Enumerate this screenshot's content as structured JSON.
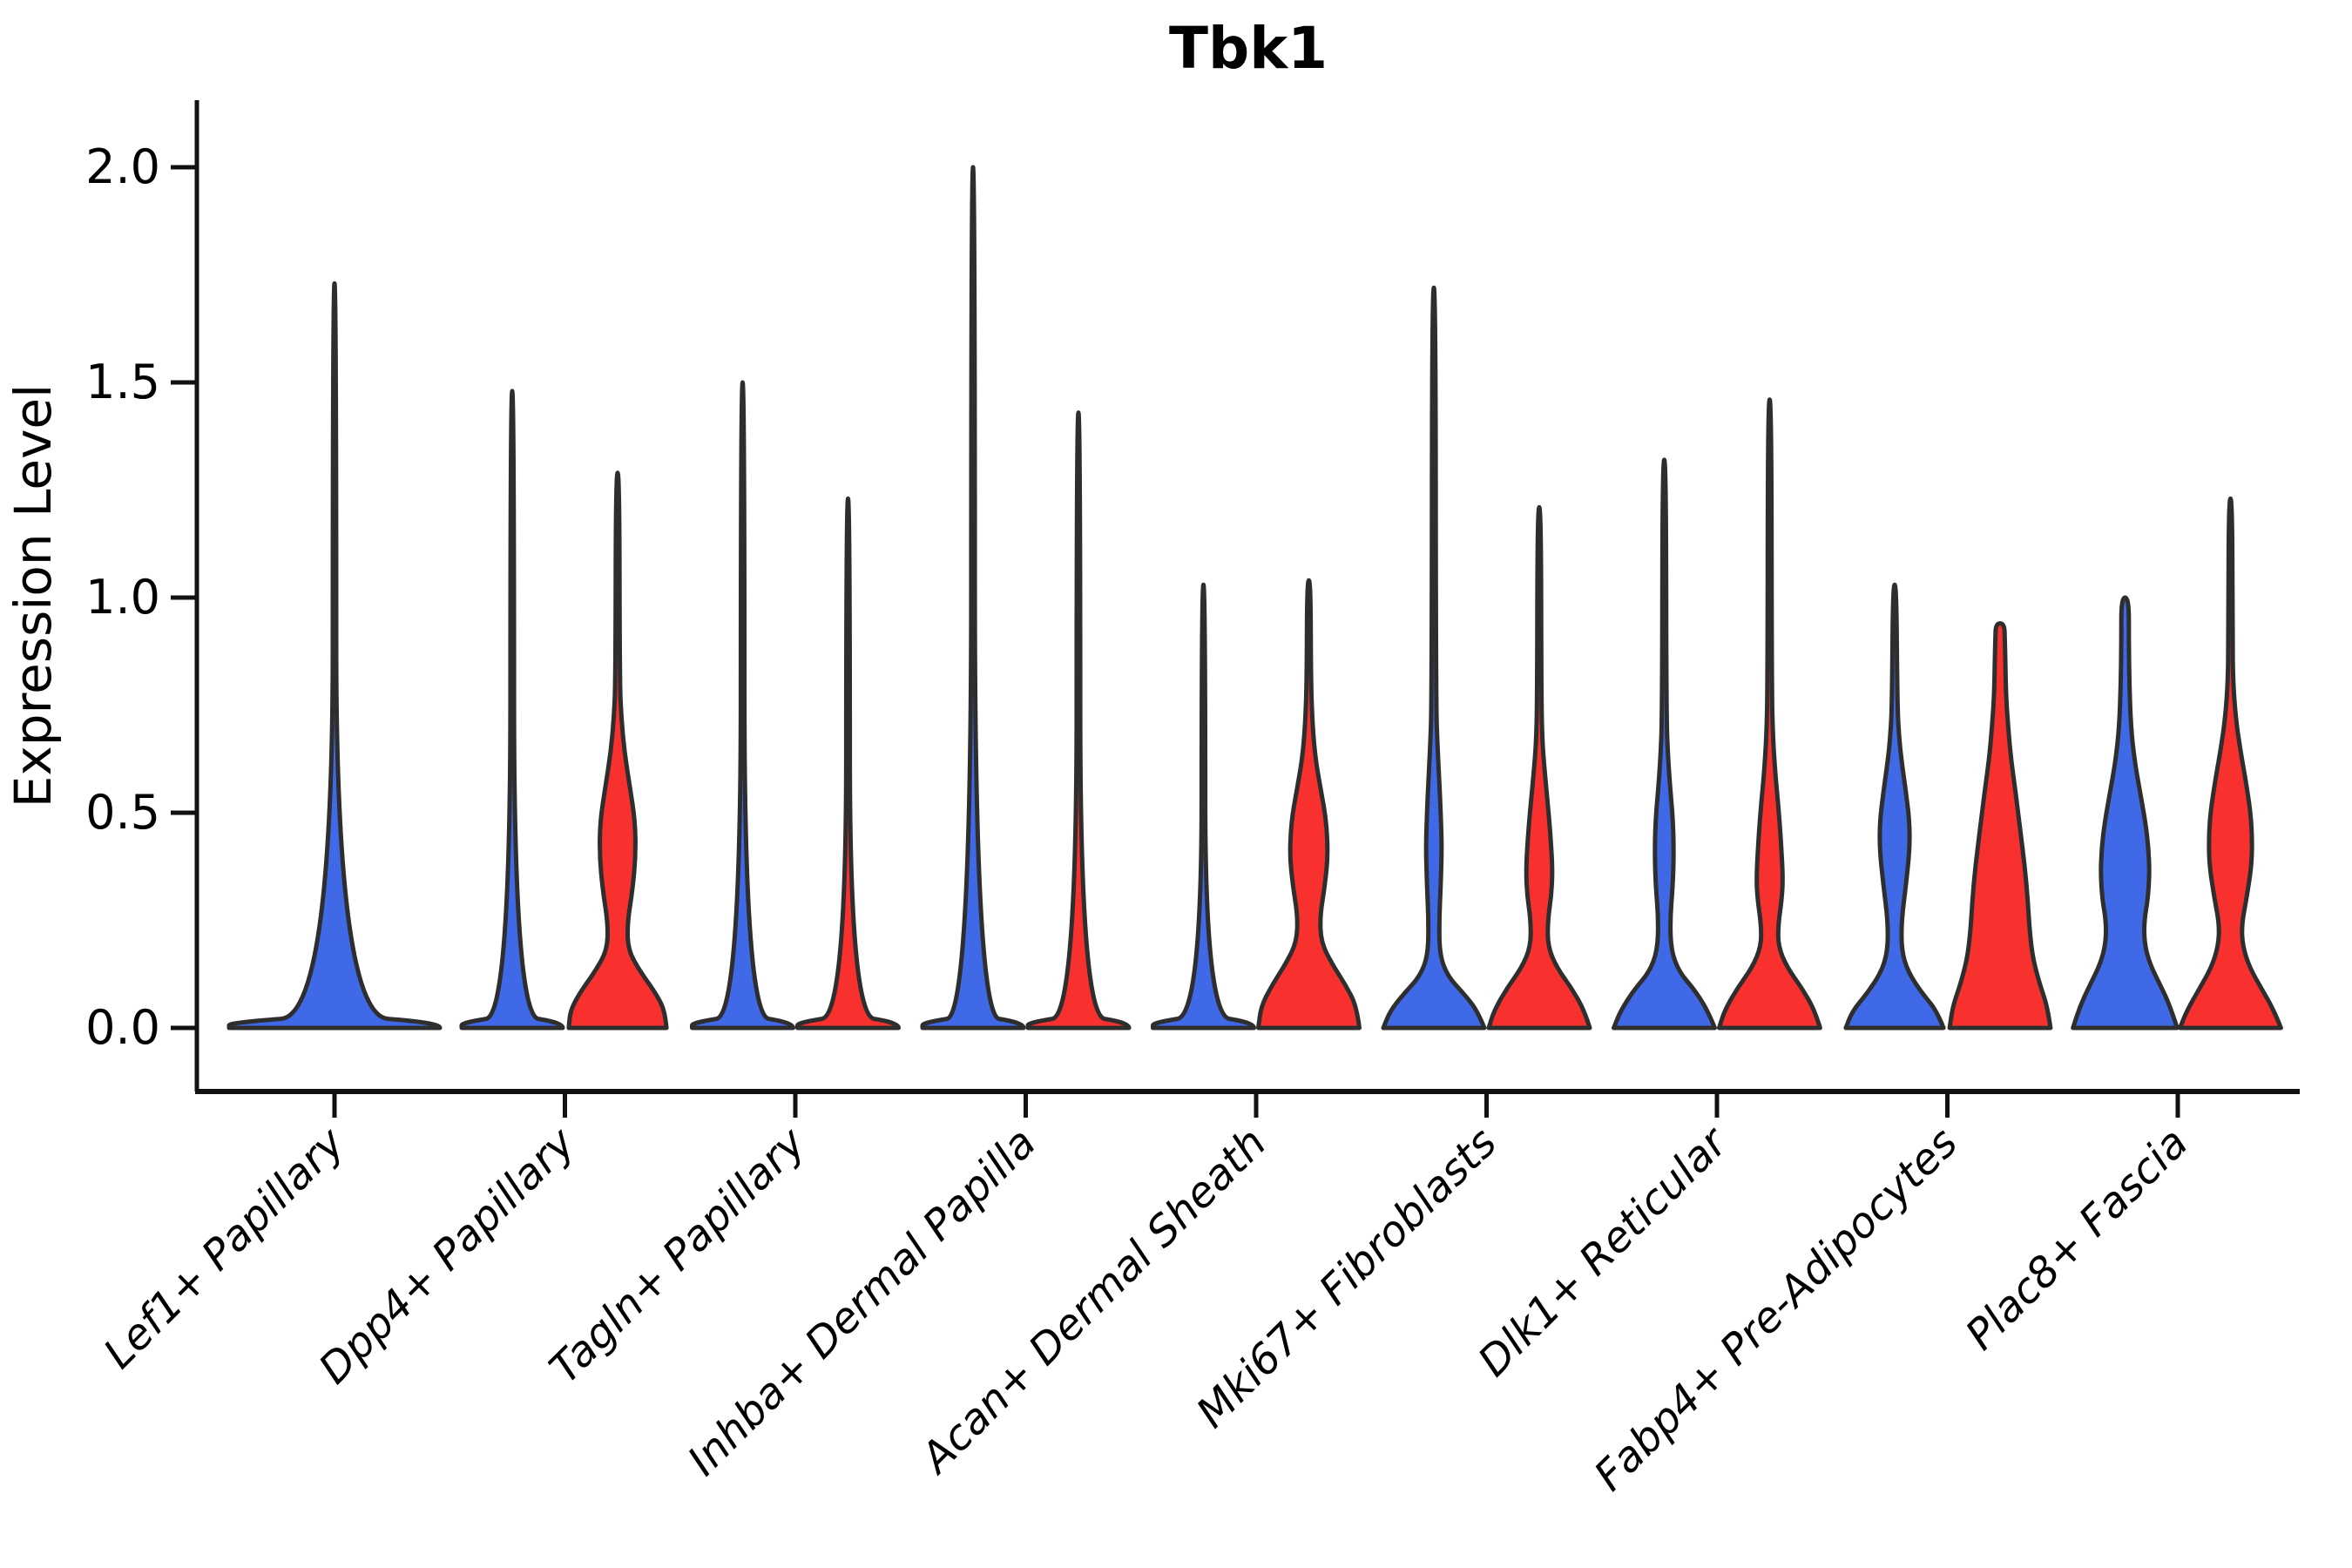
{
  "chart_data": {
    "type": "violin",
    "title": "Tbk1",
    "ylabel": "Expression Level",
    "xlabel": "",
    "ylim": [
      0.0,
      2.0
    ],
    "yticks": [
      "2.0",
      "1.5",
      "1.0",
      "0.5",
      "0.0"
    ],
    "ytick_values": [
      2.0,
      1.5,
      1.0,
      0.5,
      0.0
    ],
    "grid": false,
    "legend": "none",
    "colors": {
      "condition_blue": "#4069E8",
      "condition_red": "#F8312F",
      "outline": "#2E2E2E",
      "axis": "#111111",
      "text": "#000000"
    },
    "categories": [
      "Lef1+ Papillary",
      "Dpp4+ Papillary",
      "Tagln+ Papillary",
      "Inhba+ Dermal Papilla",
      "Acan+ Dermal Sheath",
      "Mki67+ Fibroblasts",
      "Dlk1+ Reticular",
      "Fabp4+ Pre-Adipocytes",
      "Plac8+ Fascia"
    ],
    "violins": [
      {
        "category_index": 0,
        "category": "Lef1+ Papillary",
        "group": "single",
        "color_key": "condition_blue",
        "shape": "flat-with-spike",
        "max_expression": 1.73,
        "profile": [
          [
            0,
            1.0
          ],
          [
            0.012,
            1.0
          ],
          [
            0.03,
            0.017
          ],
          [
            1.73,
            0.016
          ]
        ]
      },
      {
        "category_index": 1,
        "category": "Dpp4+ Papillary",
        "group": "left",
        "color_key": "condition_blue",
        "shape": "flat-with-spike",
        "max_expression": 1.48,
        "profile": [
          [
            0,
            0.95
          ],
          [
            0.012,
            0.95
          ],
          [
            0.03,
            0.035
          ],
          [
            1.48,
            0.033
          ]
        ]
      },
      {
        "category_index": 1,
        "category": "Dpp4+ Papillary",
        "group": "right",
        "color_key": "condition_red",
        "shape": "violin-with-spike",
        "max_expression": 1.29,
        "profile": [
          [
            0,
            0.92
          ],
          [
            0.04,
            0.89
          ],
          [
            0.08,
            0.72
          ],
          [
            0.13,
            0.43
          ],
          [
            0.18,
            0.2
          ],
          [
            0.24,
            0.18
          ],
          [
            0.32,
            0.28
          ],
          [
            0.4,
            0.34
          ],
          [
            0.48,
            0.33
          ],
          [
            0.56,
            0.23
          ],
          [
            0.64,
            0.13
          ],
          [
            0.72,
            0.07
          ],
          [
            0.8,
            0.04
          ],
          [
            1.29,
            0.033
          ]
        ]
      },
      {
        "category_index": 2,
        "category": "Tagln+ Papillary",
        "group": "left",
        "color_key": "condition_blue",
        "shape": "flat-with-spike",
        "max_expression": 1.5,
        "profile": [
          [
            0,
            0.95
          ],
          [
            0.012,
            0.95
          ],
          [
            0.03,
            0.035
          ],
          [
            1.5,
            0.033
          ]
        ]
      },
      {
        "category_index": 2,
        "category": "Tagln+ Papillary",
        "group": "right",
        "color_key": "condition_red",
        "shape": "flat-with-spike",
        "max_expression": 1.23,
        "profile": [
          [
            0,
            0.95
          ],
          [
            0.012,
            0.95
          ],
          [
            0.03,
            0.035
          ],
          [
            1.23,
            0.033
          ]
        ]
      },
      {
        "category_index": 3,
        "category": "Inhba+ Dermal Papilla",
        "group": "left",
        "color_key": "condition_blue",
        "shape": "flat-with-spike",
        "max_expression": 2.0,
        "profile": [
          [
            0,
            0.95
          ],
          [
            0.012,
            0.95
          ],
          [
            0.03,
            0.035
          ],
          [
            2.0,
            0.033
          ]
        ]
      },
      {
        "category_index": 3,
        "category": "Inhba+ Dermal Papilla",
        "group": "right",
        "color_key": "condition_red",
        "shape": "flat-with-spike",
        "max_expression": 1.43,
        "profile": [
          [
            0,
            0.95
          ],
          [
            0.012,
            0.95
          ],
          [
            0.03,
            0.035
          ],
          [
            1.43,
            0.033
          ]
        ]
      },
      {
        "category_index": 4,
        "category": "Acan+ Dermal Sheath",
        "group": "left",
        "color_key": "condition_blue",
        "shape": "flat-with-spike",
        "max_expression": 1.03,
        "profile": [
          [
            0,
            0.95
          ],
          [
            0.012,
            0.95
          ],
          [
            0.03,
            0.035
          ],
          [
            1.03,
            0.033
          ]
        ]
      },
      {
        "category_index": 4,
        "category": "Acan+ Dermal Sheath",
        "group": "right",
        "color_key": "condition_red",
        "shape": "violin-with-spike",
        "max_expression": 1.04,
        "profile": [
          [
            0,
            0.95
          ],
          [
            0.05,
            0.9
          ],
          [
            0.1,
            0.69
          ],
          [
            0.15,
            0.43
          ],
          [
            0.2,
            0.23
          ],
          [
            0.26,
            0.21
          ],
          [
            0.33,
            0.3
          ],
          [
            0.4,
            0.36
          ],
          [
            0.48,
            0.33
          ],
          [
            0.55,
            0.23
          ],
          [
            0.62,
            0.13
          ],
          [
            0.7,
            0.07
          ],
          [
            0.8,
            0.04
          ],
          [
            1.04,
            0.033
          ]
        ]
      },
      {
        "category_index": 5,
        "category": "Mki67+ Fibroblasts",
        "group": "left",
        "color_key": "condition_blue",
        "shape": "violin-with-spike",
        "max_expression": 1.72,
        "profile": [
          [
            0,
            0.95
          ],
          [
            0.04,
            0.82
          ],
          [
            0.08,
            0.56
          ],
          [
            0.12,
            0.26
          ],
          [
            0.17,
            0.11
          ],
          [
            0.25,
            0.1
          ],
          [
            0.33,
            0.13
          ],
          [
            0.42,
            0.15
          ],
          [
            0.5,
            0.13
          ],
          [
            0.58,
            0.1
          ],
          [
            0.65,
            0.07
          ],
          [
            0.75,
            0.04
          ],
          [
            1.72,
            0.033
          ]
        ]
      },
      {
        "category_index": 5,
        "category": "Mki67+ Fibroblasts",
        "group": "right",
        "color_key": "condition_red",
        "shape": "violin-with-spike",
        "max_expression": 1.21,
        "profile": [
          [
            0,
            0.95
          ],
          [
            0.04,
            0.85
          ],
          [
            0.09,
            0.62
          ],
          [
            0.14,
            0.33
          ],
          [
            0.19,
            0.16
          ],
          [
            0.25,
            0.16
          ],
          [
            0.31,
            0.23
          ],
          [
            0.37,
            0.25
          ],
          [
            0.45,
            0.21
          ],
          [
            0.52,
            0.16
          ],
          [
            0.6,
            0.1
          ],
          [
            0.66,
            0.06
          ],
          [
            0.75,
            0.04
          ],
          [
            1.21,
            0.033
          ]
        ]
      },
      {
        "category_index": 6,
        "category": "Dlk1+ Reticular",
        "group": "left",
        "color_key": "condition_blue",
        "shape": "violin-with-spike",
        "max_expression": 1.32,
        "profile": [
          [
            0,
            0.95
          ],
          [
            0.04,
            0.82
          ],
          [
            0.09,
            0.56
          ],
          [
            0.13,
            0.28
          ],
          [
            0.18,
            0.13
          ],
          [
            0.25,
            0.11
          ],
          [
            0.33,
            0.16
          ],
          [
            0.41,
            0.18
          ],
          [
            0.49,
            0.16
          ],
          [
            0.56,
            0.11
          ],
          [
            0.63,
            0.07
          ],
          [
            0.72,
            0.04
          ],
          [
            1.32,
            0.033
          ]
        ]
      },
      {
        "category_index": 6,
        "category": "Dlk1+ Reticular",
        "group": "right",
        "color_key": "condition_red",
        "shape": "violin-with-spike",
        "max_expression": 1.46,
        "profile": [
          [
            0,
            0.95
          ],
          [
            0.04,
            0.85
          ],
          [
            0.09,
            0.62
          ],
          [
            0.14,
            0.33
          ],
          [
            0.19,
            0.16
          ],
          [
            0.24,
            0.16
          ],
          [
            0.3,
            0.23
          ],
          [
            0.35,
            0.25
          ],
          [
            0.44,
            0.21
          ],
          [
            0.52,
            0.16
          ],
          [
            0.6,
            0.1
          ],
          [
            0.68,
            0.06
          ],
          [
            0.78,
            0.04
          ],
          [
            1.46,
            0.033
          ]
        ]
      },
      {
        "category_index": 7,
        "category": "Fabp4+ Pre-Adipocytes",
        "group": "left",
        "color_key": "condition_blue",
        "shape": "violin-with-spike",
        "max_expression": 1.03,
        "profile": [
          [
            0,
            0.92
          ],
          [
            0.04,
            0.79
          ],
          [
            0.08,
            0.52
          ],
          [
            0.13,
            0.25
          ],
          [
            0.18,
            0.13
          ],
          [
            0.25,
            0.13
          ],
          [
            0.33,
            0.21
          ],
          [
            0.41,
            0.28
          ],
          [
            0.48,
            0.28
          ],
          [
            0.55,
            0.21
          ],
          [
            0.62,
            0.13
          ],
          [
            0.68,
            0.08
          ],
          [
            0.75,
            0.05
          ],
          [
            1.03,
            0.033
          ]
        ]
      },
      {
        "category_index": 7,
        "category": "Fabp4+ Pre-Adipocytes",
        "group": "right",
        "color_key": "condition_red",
        "shape": "wide-cone-blunt-top",
        "max_expression": 0.94,
        "profile": [
          [
            0,
            0.95
          ],
          [
            0.05,
            0.89
          ],
          [
            0.1,
            0.75
          ],
          [
            0.16,
            0.62
          ],
          [
            0.22,
            0.56
          ],
          [
            0.3,
            0.52
          ],
          [
            0.38,
            0.46
          ],
          [
            0.46,
            0.38
          ],
          [
            0.54,
            0.3
          ],
          [
            0.62,
            0.21
          ],
          [
            0.7,
            0.15
          ],
          [
            0.78,
            0.11
          ],
          [
            0.85,
            0.1
          ],
          [
            0.9,
            0.09
          ],
          [
            0.94,
            0.08
          ]
        ]
      },
      {
        "category_index": 8,
        "category": "Plac8+ Fascia",
        "group": "left",
        "color_key": "condition_blue",
        "shape": "violin-blunt-top",
        "max_expression": 1.0,
        "profile": [
          [
            0,
            0.98
          ],
          [
            0.05,
            0.85
          ],
          [
            0.1,
            0.66
          ],
          [
            0.15,
            0.46
          ],
          [
            0.2,
            0.36
          ],
          [
            0.25,
            0.36
          ],
          [
            0.3,
            0.43
          ],
          [
            0.36,
            0.46
          ],
          [
            0.42,
            0.44
          ],
          [
            0.48,
            0.38
          ],
          [
            0.55,
            0.28
          ],
          [
            0.62,
            0.18
          ],
          [
            0.7,
            0.11
          ],
          [
            0.8,
            0.08
          ],
          [
            0.9,
            0.07
          ],
          [
            1.0,
            0.07
          ]
        ]
      },
      {
        "category_index": 8,
        "category": "Plac8+ Fascia",
        "group": "right",
        "color_key": "condition_red",
        "shape": "violin-with-spike",
        "max_expression": 1.23,
        "profile": [
          [
            0,
            0.95
          ],
          [
            0.04,
            0.82
          ],
          [
            0.09,
            0.59
          ],
          [
            0.14,
            0.36
          ],
          [
            0.19,
            0.23
          ],
          [
            0.24,
            0.21
          ],
          [
            0.3,
            0.3
          ],
          [
            0.37,
            0.39
          ],
          [
            0.43,
            0.41
          ],
          [
            0.5,
            0.38
          ],
          [
            0.58,
            0.28
          ],
          [
            0.65,
            0.18
          ],
          [
            0.72,
            0.1
          ],
          [
            0.8,
            0.05
          ],
          [
            0.9,
            0.04
          ],
          [
            1.23,
            0.033
          ]
        ]
      }
    ]
  }
}
